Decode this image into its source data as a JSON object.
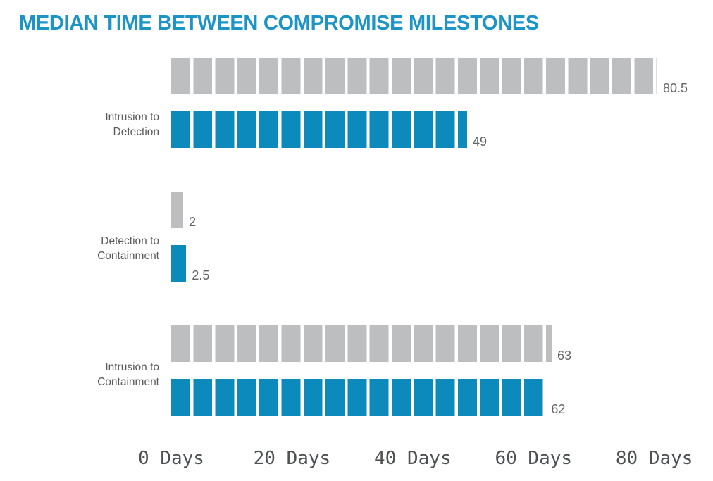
{
  "title": "MEDIAN TIME BETWEEN COMPROMISE MILESTONES",
  "colors": {
    "title": "#1b94c8",
    "bar_gray": "#bdbec0",
    "bar_blue": "#0d8abc",
    "value_label": "#626467",
    "category_label": "#58595b",
    "axis_label": "#4e5154",
    "background": "#ffffff"
  },
  "chart_data": {
    "type": "bar",
    "orientation": "horizontal",
    "title": "MEDIAN TIME BETWEEN COMPROMISE MILESTONES",
    "categories": [
      "Intrusion to Detection",
      "Detection to Containment",
      "Intrusion to Containment"
    ],
    "category_lines": [
      [
        "Intrusion to",
        "Detection"
      ],
      [
        "Detection to",
        "Containment"
      ],
      [
        "Intrusion to",
        "Containment"
      ]
    ],
    "series": [
      {
        "name": "gray-series",
        "color": "#bdbec0",
        "values": [
          80.5,
          2,
          63
        ],
        "labels": [
          "80.5",
          "2",
          "63"
        ]
      },
      {
        "name": "blue-series",
        "color": "#0d8abc",
        "values": [
          49,
          2.5,
          62
        ],
        "labels": [
          "49",
          "2.5",
          "62"
        ]
      }
    ],
    "xlabel": "",
    "ylabel": "",
    "x_axis": {
      "ticks": [
        0,
        20,
        40,
        60,
        80
      ],
      "tick_labels": [
        "0 Days",
        "20 Days",
        "40 Days",
        "60 Days",
        "80 Days"
      ],
      "xlim": [
        0,
        90
      ]
    },
    "grid": false,
    "legend": false,
    "bar_style": "segmented"
  }
}
